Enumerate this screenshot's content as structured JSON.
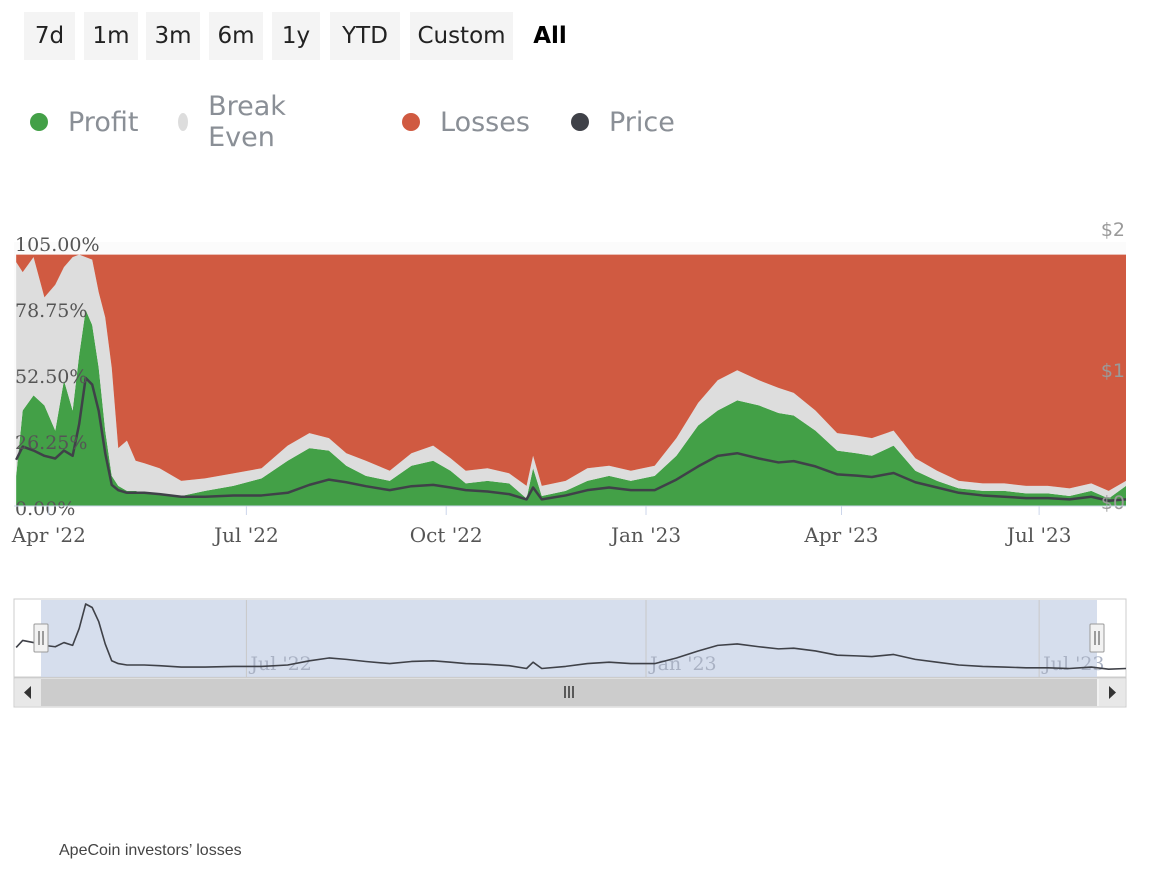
{
  "range_selector": {
    "buttons": [
      "7d",
      "1m",
      "3m",
      "6m",
      "1y",
      "YTD",
      "Custom",
      "All"
    ],
    "active": "All"
  },
  "legend": [
    {
      "label": "Profit",
      "color": "#43a047"
    },
    {
      "label": "Break Even",
      "color": "#dddddd"
    },
    {
      "label": "Losses",
      "color": "#d05a41"
    },
    {
      "label": "Price",
      "color": "#3f4148"
    }
  ],
  "caption": "ApeCoin investors’ losses",
  "chart_data": {
    "type": "area",
    "stacked_percent": true,
    "x": [
      "2022-03-17",
      "2022-03-20",
      "2022-03-25",
      "2022-03-30",
      "2022-04-04",
      "2022-04-08",
      "2022-04-12",
      "2022-04-15",
      "2022-04-18",
      "2022-04-21",
      "2022-04-24",
      "2022-04-27",
      "2022-04-30",
      "2022-05-03",
      "2022-05-07",
      "2022-05-11",
      "2022-05-15",
      "2022-05-22",
      "2022-06-01",
      "2022-06-12",
      "2022-06-25",
      "2022-07-08",
      "2022-07-20",
      "2022-07-30",
      "2022-08-08",
      "2022-08-16",
      "2022-08-25",
      "2022-09-05",
      "2022-09-15",
      "2022-09-25",
      "2022-10-03",
      "2022-10-10",
      "2022-10-20",
      "2022-10-30",
      "2022-11-07",
      "2022-11-10",
      "2022-11-14",
      "2022-11-25",
      "2022-12-05",
      "2022-12-15",
      "2022-12-25",
      "2023-01-05",
      "2023-01-15",
      "2023-01-25",
      "2023-02-03",
      "2023-02-12",
      "2023-02-22",
      "2023-03-03",
      "2023-03-10",
      "2023-03-20",
      "2023-03-30",
      "2023-04-08",
      "2023-04-15",
      "2023-04-25",
      "2023-05-05",
      "2023-05-15",
      "2023-05-25",
      "2023-06-05",
      "2023-06-15",
      "2023-06-25",
      "2023-07-05",
      "2023-07-15",
      "2023-07-25",
      "2023-08-02",
      "2023-08-10"
    ],
    "series": [
      {
        "name": "Profit",
        "color": "#43a047",
        "values": [
          12,
          38,
          44,
          40,
          30,
          50,
          38,
          60,
          78,
          72,
          55,
          30,
          12,
          8,
          6,
          6,
          5,
          5,
          4,
          6,
          8,
          11,
          18,
          23,
          22,
          16,
          12,
          10,
          16,
          18,
          14,
          9,
          10,
          9,
          3,
          15,
          4,
          6,
          10,
          12,
          10,
          12,
          20,
          32,
          38,
          42,
          40,
          37,
          36,
          30,
          22,
          21,
          20,
          24,
          14,
          10,
          7,
          6,
          6,
          5,
          5,
          4,
          6,
          3,
          8
        ]
      },
      {
        "name": "Break Even",
        "color": "#dddddd",
        "values": [
          85,
          55,
          55,
          43,
          58,
          45,
          61,
          40,
          21,
          26,
          30,
          45,
          43,
          15,
          20,
          12,
          12,
          10,
          6,
          5,
          5,
          4,
          6,
          6,
          5,
          5,
          6,
          4,
          5,
          6,
          5,
          5,
          5,
          4,
          5,
          5,
          4,
          4,
          5,
          4,
          4,
          4,
          7,
          9,
          12,
          12,
          10,
          10,
          9,
          8,
          7,
          7,
          7,
          6,
          5,
          4,
          3,
          3,
          3,
          3,
          3,
          3,
          3,
          3,
          2
        ]
      },
      {
        "name": "Losses",
        "color": "#d05a41",
        "values": [
          3,
          7,
          1,
          17,
          12,
          5,
          1,
          0,
          1,
          2,
          15,
          25,
          45,
          77,
          74,
          82,
          83,
          85,
          90,
          89,
          87,
          85,
          76,
          71,
          73,
          79,
          82,
          86,
          79,
          76,
          81,
          86,
          85,
          87,
          92,
          80,
          92,
          90,
          85,
          84,
          86,
          84,
          73,
          59,
          50,
          46,
          50,
          53,
          55,
          62,
          71,
          72,
          73,
          70,
          81,
          86,
          90,
          91,
          91,
          92,
          92,
          93,
          91,
          94,
          90
        ]
      },
      {
        "name": "Price",
        "color": "#3f4148",
        "axis": "right",
        "values": [
          0.35,
          0.45,
          0.42,
          0.38,
          0.36,
          0.42,
          0.38,
          0.62,
          0.97,
          0.92,
          0.72,
          0.4,
          0.16,
          0.12,
          0.1,
          0.1,
          0.1,
          0.09,
          0.07,
          0.07,
          0.08,
          0.08,
          0.1,
          0.16,
          0.2,
          0.18,
          0.15,
          0.12,
          0.15,
          0.16,
          0.14,
          0.12,
          0.11,
          0.09,
          0.05,
          0.14,
          0.05,
          0.08,
          0.12,
          0.14,
          0.12,
          0.12,
          0.2,
          0.3,
          0.38,
          0.4,
          0.36,
          0.33,
          0.34,
          0.3,
          0.24,
          0.23,
          0.22,
          0.25,
          0.18,
          0.14,
          0.1,
          0.08,
          0.07,
          0.06,
          0.06,
          0.05,
          0.07,
          0.04,
          0.05
        ]
      }
    ],
    "x_ticks": [
      "Apr '22",
      "Jul '22",
      "Oct '22",
      "Jan '23",
      "Apr '23",
      "Jul '23"
    ],
    "x_tick_dates": [
      "2022-04-01",
      "2022-07-01",
      "2022-10-01",
      "2023-01-01",
      "2023-04-01",
      "2023-07-01"
    ],
    "y_ticks": [
      "105.00%",
      "78.75%",
      "52.50%",
      "26.25%",
      "0.00%"
    ],
    "y_tick_values": [
      105,
      78.75,
      52.5,
      26.25,
      0
    ],
    "ylim": [
      0,
      105
    ],
    "y2_ticks": [
      "$2",
      "$1",
      "$0"
    ],
    "y2_tick_values": [
      2,
      1,
      0
    ],
    "y2lim": [
      0,
      2
    ],
    "xlim": [
      "2022-03-16",
      "2023-08-10"
    ],
    "navigator": {
      "x_ticks": [
        "Jul '22",
        "Jan '23",
        "Jul '23"
      ],
      "x_tick_dates": [
        "2022-07-01",
        "2023-01-01",
        "2023-07-01"
      ]
    }
  }
}
